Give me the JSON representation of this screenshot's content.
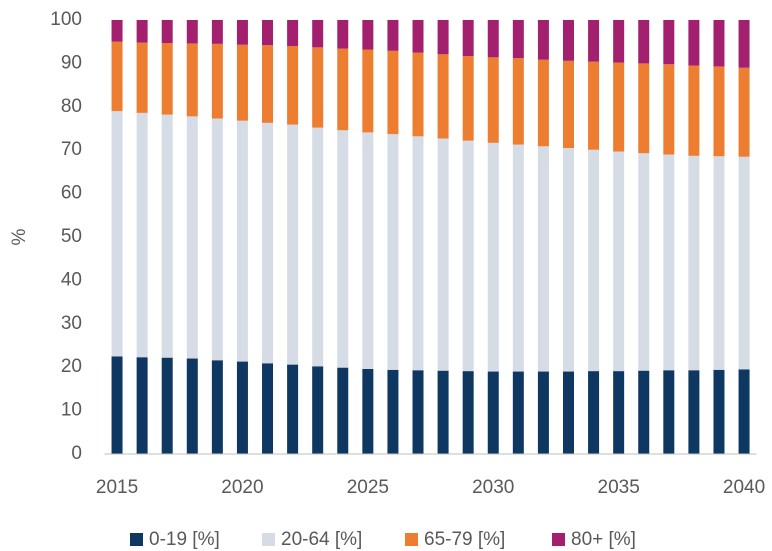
{
  "chart_data": {
    "type": "stacked_bar",
    "ylabel": "%",
    "categories": [
      "2015",
      null,
      null,
      null,
      null,
      "2020",
      null,
      null,
      null,
      null,
      "2025",
      null,
      null,
      null,
      null,
      "2030",
      null,
      null,
      null,
      null,
      "2035",
      null,
      null,
      null,
      null,
      "2040"
    ],
    "series": [
      {
        "name": "0-19 [%]",
        "color": "#0e3862",
        "values": [
          22.5,
          22.3,
          22.2,
          22.0,
          21.6,
          21.3,
          20.9,
          20.6,
          20.2,
          19.9,
          19.6,
          19.4,
          19.3,
          19.2,
          19.1,
          19.0,
          19.0,
          19.0,
          19.0,
          19.1,
          19.1,
          19.2,
          19.3,
          19.3,
          19.4,
          19.5
        ]
      },
      {
        "name": "20-64 [%]",
        "color": "#d6dce5",
        "values": [
          56.5,
          56.3,
          56.0,
          55.8,
          55.7,
          55.5,
          55.4,
          55.3,
          55.0,
          54.7,
          54.5,
          54.3,
          53.9,
          53.5,
          53.1,
          52.7,
          52.3,
          51.9,
          51.5,
          51.0,
          50.6,
          50.1,
          49.7,
          49.4,
          49.2,
          49.0
        ]
      },
      {
        "name": "65-79 [%]",
        "color": "#ed7d31",
        "values": [
          16.0,
          16.2,
          16.5,
          16.8,
          17.2,
          17.5,
          17.9,
          18.1,
          18.5,
          18.8,
          19.1,
          19.2,
          19.3,
          19.4,
          19.5,
          19.7,
          19.9,
          20.0,
          20.1,
          20.3,
          20.5,
          20.7,
          20.8,
          20.8,
          20.7,
          20.5
        ]
      },
      {
        "name": "80+ [%]",
        "color": "#a3206f",
        "values": [
          5.0,
          5.2,
          5.3,
          5.4,
          5.5,
          5.7,
          5.8,
          6.0,
          6.3,
          6.6,
          6.8,
          7.1,
          7.5,
          7.9,
          8.3,
          8.6,
          8.8,
          9.1,
          9.4,
          9.6,
          9.8,
          10.0,
          10.2,
          10.5,
          10.7,
          11.0
        ]
      }
    ],
    "ylim": [
      0,
      100
    ],
    "yticks": [
      0,
      10,
      20,
      30,
      40,
      50,
      60,
      70,
      80,
      90,
      100
    ],
    "grid": false,
    "legend": "bottom"
  }
}
